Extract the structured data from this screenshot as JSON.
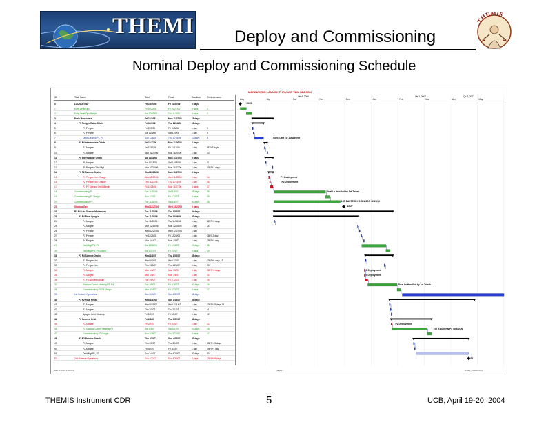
{
  "header": {
    "logo_text": "THEMIS",
    "title": "Deploy and Commissioning",
    "subtitle": "Nominal Deploy and Commissioning Schedule",
    "mascot_text": "THEMIS"
  },
  "sheet": {
    "title": "MANEUVERS LAUNCH THRU 1ST TAIL SEASON",
    "columns": {
      "id": "ID",
      "name": "Task Name",
      "start": "Start",
      "finish": "Finish",
      "duration": "Duration",
      "predecessors": "Predecessors"
    },
    "timeline_quarters": [
      "Qtr 4, 2006",
      "Qtr 1, 2007",
      "Qtr 2, 2007"
    ],
    "timeline_months": [
      "Aug",
      "Sep",
      "Oct",
      "Nov",
      "Dec",
      "Jan",
      "Feb",
      "Mar",
      "Apr",
      "May"
    ],
    "footer_left": "Wed 3/31/04 1:09 PM",
    "footer_mid": "Page 1",
    "footer_right": "sched_mission.mpp"
  },
  "rows": [
    {
      "id": "0",
      "name": "LAUNCH DAY",
      "start": "Fri 10/20/06",
      "finish": "Fri 10/20/06",
      "dur": "0 days",
      "pred": "",
      "style": "bold"
    },
    {
      "id": "1",
      "name": "Early Orbit Ops",
      "start": "Fri 10/20/06",
      "finish": "Fri 10/27/06",
      "dur": "6 days",
      "pred": "1",
      "style": "green"
    },
    {
      "id": "2",
      "name": "Early Orbit Ops Margin",
      "start": "Sat 10/28/06",
      "finish": "Thu 11/2/06",
      "dur": "5 days",
      "pred": "2",
      "style": "green"
    },
    {
      "id": "3",
      "name": "Early Maneuvers",
      "start": "Fri 11/3/06",
      "finish": "Mon 11/27/06",
      "dur": "18 days",
      "pred": "",
      "style": "bold"
    },
    {
      "id": "4",
      "name": "P1 Perigee Raise Orbits",
      "start": "Fri 11/3/06",
      "finish": "Thu 11/16/06",
      "dur": "10 days",
      "pred": "",
      "style": "bold indent1"
    },
    {
      "id": "5",
      "name": "P1 Perigee",
      "start": "Fri 11/3/06",
      "finish": "Fri 11/3/06",
      "dur": "1 day",
      "pred": "3",
      "style": "indent2"
    },
    {
      "id": "6",
      "name": "P2 Perigee",
      "start": "Sat 11/4/06",
      "finish": "Sat 11/4/06",
      "dur": "1 day",
      "pred": "5",
      "style": "indent2"
    },
    {
      "id": "7",
      "name": "Orbit Cleanup P1, P2",
      "start": "Sun 11/5/06",
      "finish": "Thu 11/16/06",
      "dur": "10 days",
      "pred": "6",
      "style": "indent2 blue"
    },
    {
      "id": "8",
      "name": "P3 P4 Intermediate Orbits",
      "start": "Fri 11/17/06",
      "finish": "Mon 11/20/06",
      "dur": "2 days",
      "pred": "",
      "style": "bold indent1"
    },
    {
      "id": "9",
      "name": "P3 Apogee",
      "start": "Fri 11/17/06",
      "finish": "Fri 11/17/06",
      "dur": "1 day",
      "pred": "8FS+5 days",
      "style": "indent2"
    },
    {
      "id": "10",
      "name": "P4 Apogee",
      "start": "Mon 11/20/06",
      "finish": "Mon 11/20/06",
      "dur": "1 day",
      "pred": "10",
      "style": "indent2"
    },
    {
      "id": "11",
      "name": "P5 Intermediate Orbits",
      "start": "Sat 11/18/06",
      "finish": "Mon 11/27/06",
      "dur": "6 days",
      "pred": "",
      "style": "bold indent1"
    },
    {
      "id": "12",
      "name": "P5 Apogee",
      "start": "Sat 11/18/06",
      "finish": "Sat 11/18/06",
      "dur": "1 day",
      "pred": "11",
      "style": "indent2"
    },
    {
      "id": "13",
      "name": "P5 Perigee, Orbit Mgt",
      "start": "Mon 11/20/06",
      "finish": "Mon 11/27/06",
      "dur": "1 day",
      "pred": "13FS+7 days",
      "style": "indent2"
    },
    {
      "id": "14",
      "name": "P1 P2 Science Orbits",
      "start": "Wed 11/22/06",
      "finish": "Mon 11/27/06",
      "dur": "5 days",
      "pred": "",
      "style": "bold indent1"
    },
    {
      "id": "15",
      "name": "P1 Perigee, Inc Change",
      "start": "Wed 11/22/06",
      "finish": "Wed 11/22/06",
      "dur": "1 day",
      "pred": "14",
      "style": "indent2 red"
    },
    {
      "id": "16",
      "name": "P2 Perigee, Inc Change",
      "start": "Thu 11/23/06",
      "finish": "Thu 11/23/06",
      "dur": "1 day",
      "pred": "16",
      "style": "indent2 red"
    },
    {
      "id": "17",
      "name": "P1 P2 Science Orbit Margin",
      "start": "Fri 11/24/06",
      "finish": "Mon 11/27/06",
      "dur": "4 days",
      "pred": "17",
      "style": "indent2 red"
    },
    {
      "id": "18",
      "name": "Commissioning P1",
      "start": "Tue 11/28/06",
      "finish": "Sat 1/6/07",
      "dur": "28 days",
      "pred": "18",
      "style": "green"
    },
    {
      "id": "19",
      "name": "Commissioning P1 Margin",
      "start": "Sun 1/7/07",
      "finish": "Fri 1/12/07",
      "dur": "5 days",
      "pred": "19",
      "style": "green"
    },
    {
      "id": "20",
      "name": "Commissioning P2",
      "start": "Tue 11/28/06",
      "finish": "Sat 1/6/07",
      "dur": "40 days",
      "pred": "18",
      "style": "green"
    },
    {
      "id": "21",
      "name": "Shadow Day",
      "start": "Wed 12/27/06",
      "finish": "Wed 12/27/06",
      "dur": "0 days",
      "pred": "",
      "style": "red bold"
    },
    {
      "id": "22",
      "name": "P3 P4 Late Season Maneuvers",
      "start": "Tue 11/28/06",
      "finish": "Thu 1/25/07",
      "dur": "44 days",
      "pred": "",
      "style": "bold"
    },
    {
      "id": "23",
      "name": "P3 P4 Final Apogee",
      "start": "Tue 11/28/06",
      "finish": "Tue 12/26/06",
      "dur": "20 days",
      "pred": "",
      "style": "bold indent1"
    },
    {
      "id": "24",
      "name": "P4 Apogee",
      "start": "Tue 11/28/06",
      "finish": "Tue 11/28/06",
      "dur": "1 day",
      "pred": "22FS+8 days",
      "style": "indent2"
    },
    {
      "id": "25",
      "name": "P3 Apogee",
      "start": "Mon 12/25/06",
      "finish": "Mon 12/25/06",
      "dur": "1 day",
      "pred": "24",
      "style": "indent2"
    },
    {
      "id": "26",
      "name": "P4 Perigee",
      "start": "Wed 12/27/06",
      "finish": "Wed 12/27/06",
      "dur": "1 day",
      "pred": "",
      "style": "indent2"
    },
    {
      "id": "27",
      "name": "P3 Perigee",
      "start": "Fri 12/29/06",
      "finish": "Fri 12/29/06",
      "dur": "1 day",
      "pred": "26FS-3 day",
      "style": "indent2"
    },
    {
      "id": "28",
      "name": "P4 Perigee",
      "start": "Mon 1/1/07",
      "finish": "Mon 1/1/07",
      "dur": "1 day",
      "pred": "28FS+2 day",
      "style": "indent2"
    },
    {
      "id": "29",
      "name": "Orbit Mgt P3, P4",
      "start": "Sat 12/30/06",
      "finish": "Fri 1/26/07",
      "dur": "20 days",
      "pred": "28",
      "style": "indent2 green"
    },
    {
      "id": "30",
      "name": "Orbit Mgt P3, P4 Margin",
      "start": "Sat 1/27/07",
      "finish": "Fri 2/2/07",
      "dur": "5 days",
      "pred": "29",
      "style": "indent2 green"
    },
    {
      "id": "31",
      "name": "P3 P4 Science Orbits",
      "start": "Wed 1/3/07",
      "finish": "Thu 1/25/07",
      "dur": "35 days",
      "pred": "",
      "style": "bold indent1"
    },
    {
      "id": "32",
      "name": "P3 Perigee, Inc",
      "start": "Wed 1/3/07",
      "finish": "Wed 1/3/07",
      "dur": "1 day",
      "pred": "23FS+5 days,13",
      "style": "indent2"
    },
    {
      "id": "33",
      "name": "P4 Perigee, Inc",
      "start": "Thu 1/25/07",
      "finish": "Thu 1/25/07",
      "dur": "1 day",
      "pred": "33",
      "style": "indent2"
    },
    {
      "id": "34",
      "name": "P3 Apogee",
      "start": "Mon 1/8/07",
      "finish": "Mon 1/8/07",
      "dur": "1 day",
      "pred": "32FS+4 days",
      "style": "indent2 red"
    },
    {
      "id": "35",
      "name": "P4 Apogee",
      "start": "Mon 1/8/07",
      "finish": "Mon 1/8/07",
      "dur": "1 day",
      "pred": "34",
      "style": "indent2 red"
    },
    {
      "id": "36",
      "name": "P3 P4 Apogee Margin",
      "start": "Tue 1/9/07",
      "finish": "Fri 1/12/07",
      "dur": "1 day",
      "pred": "35",
      "style": "indent2 red"
    },
    {
      "id": "37",
      "name": "Shadow Comm. Heating P3, P4",
      "start": "Tue 1/9/07",
      "finish": "Fri 2/16/07",
      "dur": "40 days",
      "pred": "36",
      "style": "indent2 green"
    },
    {
      "id": "38",
      "name": "Commissioning P3 P4 Margin",
      "start": "Mon 2/19/07",
      "finish": "Fri 2/23/07",
      "dur": "5 days",
      "pred": "37",
      "style": "indent2 green"
    },
    {
      "id": "39",
      "name": "1st Science Operations",
      "start": "Sun 2/25/07",
      "finish": "Sun 4/22/07",
      "dur": "62 days",
      "pred": "",
      "style": "blue"
    },
    {
      "id": "40",
      "name": "P1 P2 Final Phase",
      "start": "Wed 1/31/07",
      "finish": "Sun 3/25/07",
      "dur": "55 days",
      "pred": "",
      "style": "bold indent1"
    },
    {
      "id": "41",
      "name": "P1 Apogee",
      "start": "Wed 1/31/07",
      "finish": "Wed 1/31/07",
      "dur": "1 day",
      "pred": "23FS+35 days,13",
      "style": "indent2"
    },
    {
      "id": "42",
      "name": "P2 Apogee",
      "start": "Thu 2/1/07",
      "finish": "Thu 2/1/07",
      "dur": "1 day",
      "pred": "41",
      "style": "indent2"
    },
    {
      "id": "43",
      "name": "Apogee Orbit Cleanup",
      "start": "Fri 2/2/07",
      "finish": "Fri 2/2/07",
      "dur": "1 day",
      "pred": "42",
      "style": "indent2"
    },
    {
      "id": "44",
      "name": "P3 Science Orbit",
      "start": "Fri 2/2/07",
      "finish": "Thu 3/22/07",
      "dur": "43 days",
      "pred": "",
      "style": "bold indent1"
    },
    {
      "id": "45",
      "name": "P2 Apogee",
      "start": "Fri 2/2/07",
      "finish": "Fri 2/2/07",
      "dur": "1 day",
      "pred": "42",
      "style": "indent2 red"
    },
    {
      "id": "46",
      "name": "P2 Shadow Comm. Heating P2",
      "start": "Sat 2/3/07",
      "finish": "Sat 3/17/07",
      "dur": "33 days",
      "pred": "46",
      "style": "indent2 green"
    },
    {
      "id": "47",
      "name": "Commissioning P2 Margin",
      "start": "Sun 3/18/07",
      "finish": "Thu 3/22/07",
      "dur": "5 days",
      "pred": "47",
      "style": "indent2 green"
    },
    {
      "id": "48",
      "name": "P1 P2 Booster Tweak",
      "start": "Thu 3/1/07",
      "finish": "Sun 4/22/07",
      "dur": "43 days",
      "pred": "",
      "style": "bold indent1"
    },
    {
      "id": "49",
      "name": "P1 Apogee",
      "start": "Thu 3/1/07",
      "finish": "Thu 3/1/07",
      "dur": "1 day",
      "pred": "23FS+69 days",
      "style": "indent2"
    },
    {
      "id": "50",
      "name": "P2 Apogee",
      "start": "Fri 3/2/07",
      "finish": "Fri 3/2/07",
      "dur": "1 day",
      "pred": "49FS+1 day",
      "style": "indent2"
    },
    {
      "id": "51",
      "name": "Orbit Mgt P1, P2",
      "start": "Sun 3/4/07",
      "finish": "Sun 4/22/07",
      "dur": "50 days",
      "pred": "50",
      "style": "indent2"
    },
    {
      "id": "52",
      "name": "2nd Science Operations",
      "start": "Sun 4/22/07",
      "finish": "Sun 4/22/07",
      "dur": "0 days",
      "pred": "23FS+89 days",
      "style": "red"
    }
  ],
  "gantt_labels": [
    {
      "text": "10/20",
      "row": 0,
      "start_day": 9
    },
    {
      "text": "Cont. Last TD 1st Advent",
      "row": 7,
      "start_day": 40
    },
    {
      "text": "P1 Deployment",
      "row": 15,
      "start_day": 49
    },
    {
      "text": "P2 Deployment",
      "row": 16,
      "start_day": 50
    },
    {
      "text": "Final Lo Handled by 1st Tweak",
      "row": 18,
      "start_day": 102
    },
    {
      "text": "1ST EASTERN P3 SEASON 12/29/06",
      "row": 20,
      "start_day": 119
    },
    {
      "text": "12/27",
      "row": 21,
      "start_day": 126
    },
    {
      "text": "P3 Deployment",
      "row": 34,
      "start_day": 146
    },
    {
      "text": "P4 Deployment",
      "row": 35,
      "start_day": 146
    },
    {
      "text": "Final Lo Handled by 1st Tweak",
      "row": 37,
      "start_day": 185
    },
    {
      "text": "P2 Deployment",
      "row": 45,
      "start_day": 182
    },
    {
      "text": "1ST EASTERN P2 SEASON",
      "row": 46,
      "start_day": 226
    },
    {
      "text": "4/22",
      "row": 52,
      "start_day": 267
    }
  ],
  "gantt_bars": [
    {
      "row": 0,
      "type": "milestone",
      "start_day": 2
    },
    {
      "row": 1,
      "type": "green",
      "start_day": 2,
      "end_day": 9
    },
    {
      "row": 2,
      "type": "green",
      "start_day": 9,
      "end_day": 15
    },
    {
      "row": 3,
      "type": "summary",
      "start_day": 16,
      "end_day": 40
    },
    {
      "row": 4,
      "type": "summary",
      "start_day": 16,
      "end_day": 29
    },
    {
      "row": 5,
      "type": "task",
      "start_day": 16,
      "end_day": 17
    },
    {
      "row": 6,
      "type": "task",
      "start_day": 17,
      "end_day": 18
    },
    {
      "row": 7,
      "type": "blue",
      "start_day": 18,
      "end_day": 29
    },
    {
      "row": 8,
      "type": "summary",
      "start_day": 30,
      "end_day": 33
    },
    {
      "row": 9,
      "type": "task",
      "start_day": 30,
      "end_day": 31
    },
    {
      "row": 10,
      "type": "task",
      "start_day": 33,
      "end_day": 34
    },
    {
      "row": 11,
      "type": "summary",
      "start_day": 31,
      "end_day": 40
    },
    {
      "row": 12,
      "type": "task",
      "start_day": 31,
      "end_day": 32
    },
    {
      "row": 13,
      "type": "task",
      "start_day": 39,
      "end_day": 40
    },
    {
      "row": 14,
      "type": "summary",
      "start_day": 35,
      "end_day": 40
    },
    {
      "row": 15,
      "type": "red",
      "start_day": 35,
      "end_day": 36
    },
    {
      "row": 16,
      "type": "red",
      "start_day": 36,
      "end_day": 37
    },
    {
      "row": 17,
      "type": "red",
      "start_day": 37,
      "end_day": 40
    },
    {
      "row": 18,
      "type": "green",
      "start_day": 41,
      "end_day": 101
    },
    {
      "row": 19,
      "type": "green",
      "start_day": 101,
      "end_day": 106
    },
    {
      "row": 20,
      "type": "green",
      "start_day": 41,
      "end_day": 118
    },
    {
      "row": 21,
      "type": "milestone",
      "start_day": 122
    },
    {
      "row": 22,
      "type": "summary",
      "start_day": 41,
      "end_day": 179
    },
    {
      "row": 23,
      "type": "summary",
      "start_day": 41,
      "end_day": 139
    },
    {
      "row": 24,
      "type": "task",
      "start_day": 41,
      "end_day": 42
    },
    {
      "row": 25,
      "type": "task",
      "start_day": 138,
      "end_day": 139
    },
    {
      "row": 26,
      "type": "task",
      "start_day": 140,
      "end_day": 141
    },
    {
      "row": 27,
      "type": "task",
      "start_day": 142,
      "end_day": 143
    },
    {
      "row": 28,
      "type": "task",
      "start_day": 145,
      "end_day": 146
    },
    {
      "row": 29,
      "type": "green",
      "start_day": 143,
      "end_day": 171
    },
    {
      "row": 30,
      "type": "green",
      "start_day": 171,
      "end_day": 176
    },
    {
      "row": 31,
      "type": "summary",
      "start_day": 147,
      "end_day": 179
    },
    {
      "row": 32,
      "type": "task",
      "start_day": 147,
      "end_day": 148
    },
    {
      "row": 33,
      "type": "task",
      "start_day": 169,
      "end_day": 170
    },
    {
      "row": 34,
      "type": "red",
      "start_day": 146,
      "end_day": 147
    },
    {
      "row": 35,
      "type": "red",
      "start_day": 146,
      "end_day": 147
    },
    {
      "row": 36,
      "type": "red",
      "start_day": 147,
      "end_day": 150
    },
    {
      "row": 37,
      "type": "green",
      "start_day": 150,
      "end_day": 184
    },
    {
      "row": 38,
      "type": "green",
      "start_day": 184,
      "end_day": 188
    },
    {
      "row": 39,
      "type": "blue",
      "start_day": 190,
      "end_day": 308
    },
    {
      "row": 40,
      "type": "summary",
      "start_day": 175,
      "end_day": 274
    },
    {
      "row": 41,
      "type": "task",
      "start_day": 175,
      "end_day": 176
    },
    {
      "row": 42,
      "type": "task",
      "start_day": 176,
      "end_day": 177
    },
    {
      "row": 43,
      "type": "task",
      "start_day": 177,
      "end_day": 178
    },
    {
      "row": 44,
      "type": "summary",
      "start_day": 177,
      "end_day": 224
    },
    {
      "row": 45,
      "type": "red",
      "start_day": 177,
      "end_day": 178
    },
    {
      "row": 46,
      "type": "green",
      "start_day": 178,
      "end_day": 219
    },
    {
      "row": 47,
      "type": "green",
      "start_day": 219,
      "end_day": 224
    },
    {
      "row": 48,
      "type": "summary",
      "start_day": 203,
      "end_day": 267
    },
    {
      "row": 49,
      "type": "task",
      "start_day": 203,
      "end_day": 204
    },
    {
      "row": 50,
      "type": "task",
      "start_day": 204,
      "end_day": 205
    },
    {
      "row": 51,
      "type": "lavender",
      "start_day": 206,
      "end_day": 267
    },
    {
      "row": 52,
      "type": "milestone",
      "start_day": 267
    }
  ],
  "colors": {
    "green": "#3fa63f",
    "blue": "#2b3fd6",
    "red": "#e0001b",
    "summary": "#000000",
    "task": "#2a3fa0",
    "lavender": "#b9c0ee"
  },
  "footer": {
    "left": "THEMIS Instrument CDR",
    "page": "5",
    "right": "UCB, April 19-20, 2004"
  }
}
